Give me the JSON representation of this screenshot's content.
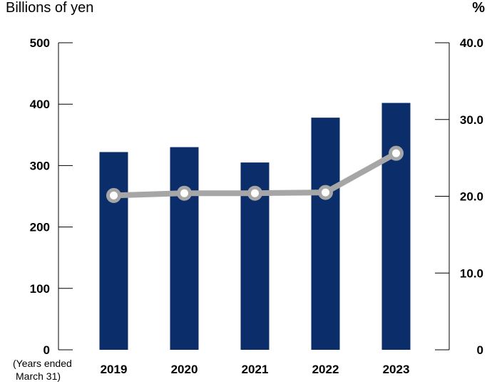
{
  "chart_data": {
    "type": "bar",
    "categories": [
      "2019",
      "2020",
      "2021",
      "2022",
      "2023"
    ],
    "series": [
      {
        "type": "bar",
        "axis": "left",
        "color": "#0b2d69",
        "values": [
          322,
          330,
          305,
          378,
          402
        ]
      },
      {
        "type": "line",
        "axis": "right",
        "color": "#a6a6a6",
        "values": [
          20.1,
          20.4,
          20.4,
          20.5,
          25.6
        ]
      }
    ],
    "y_left": {
      "label": "Billions of yen",
      "ylim": [
        0,
        500
      ],
      "ticks": [
        "0",
        "100",
        "200",
        "300",
        "400",
        "500"
      ]
    },
    "y_right": {
      "label": "%",
      "ylim": [
        0,
        40
      ],
      "ticks": [
        "0",
        "10.0",
        "20.0",
        "30.0",
        "40.0"
      ]
    },
    "x_note_line1": "(Years ended",
    "x_note_line2": "March 31)",
    "grid": false,
    "legend": "none"
  }
}
